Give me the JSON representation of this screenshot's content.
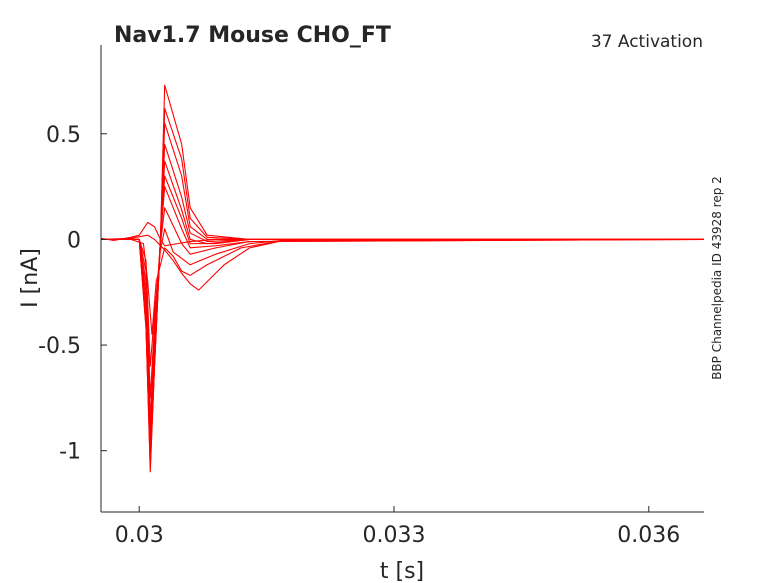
{
  "chart_data": {
    "type": "line",
    "title": "Nav1.7  Mouse  CHO_FT",
    "subtitle": "37  Activation",
    "side_label": "BBP Channelpedia ID 43928 rep 2",
    "xlabel": "t [s]",
    "ylabel": "I [nA]",
    "xlim": [
      0.02955,
      0.03665
    ],
    "ylim": [
      -1.29,
      0.92
    ],
    "x_ticks": [
      0.03,
      0.033,
      0.036
    ],
    "x_tick_labels": [
      "0.03",
      "0.033",
      "0.036"
    ],
    "y_ticks": [
      -1,
      -0.5,
      0,
      0.5
    ],
    "y_tick_labels": [
      "-1",
      "-0.5",
      "0",
      "0.5"
    ],
    "grid": false,
    "line_color": "#ff0000",
    "series": [
      {
        "values": [
          [
            0.02955,
            0.005
          ],
          [
            0.0297,
            -0.005
          ],
          [
            0.0299,
            0.01
          ],
          [
            0.03,
            0.02
          ],
          [
            0.0301,
            0.08
          ],
          [
            0.03018,
            0.06
          ],
          [
            0.03025,
            0.0
          ],
          [
            0.0303,
            -0.03
          ],
          [
            0.03045,
            -0.02
          ],
          [
            0.0306,
            -0.01
          ],
          [
            0.0309,
            0.0
          ],
          [
            0.033,
            0.0
          ],
          [
            0.036,
            0.0
          ],
          [
            0.03665,
            0.0
          ]
        ]
      },
      {
        "values": [
          [
            0.02955,
            0.0
          ],
          [
            0.0299,
            0.005
          ],
          [
            0.0301,
            0.02
          ],
          [
            0.03018,
            0.0
          ],
          [
            0.0303,
            -0.05
          ],
          [
            0.0304,
            -0.1
          ],
          [
            0.0305,
            -0.16
          ],
          [
            0.0306,
            -0.21
          ],
          [
            0.0307,
            -0.24
          ],
          [
            0.0308,
            -0.2
          ],
          [
            0.031,
            -0.12
          ],
          [
            0.0313,
            -0.04
          ],
          [
            0.0317,
            -0.005
          ],
          [
            0.0325,
            0.0
          ],
          [
            0.03665,
            0.0
          ]
        ]
      },
      {
        "values": [
          [
            0.02955,
            0.0
          ],
          [
            0.0299,
            0.0
          ],
          [
            0.03005,
            -0.02
          ],
          [
            0.0301,
            -0.2
          ],
          [
            0.03015,
            -0.45
          ],
          [
            0.0302,
            -0.2
          ],
          [
            0.0303,
            -0.04
          ],
          [
            0.0304,
            -0.08
          ],
          [
            0.0305,
            -0.15
          ],
          [
            0.0306,
            -0.17
          ],
          [
            0.0308,
            -0.12
          ],
          [
            0.0312,
            -0.04
          ],
          [
            0.0317,
            -0.005
          ],
          [
            0.03665,
            0.0
          ]
        ]
      },
      {
        "values": [
          [
            0.02955,
            0.0
          ],
          [
            0.03,
            0.0
          ],
          [
            0.03008,
            -0.1
          ],
          [
            0.03013,
            -0.6
          ],
          [
            0.03018,
            -0.35
          ],
          [
            0.03025,
            -0.05
          ],
          [
            0.0303,
            0.05
          ],
          [
            0.0304,
            -0.06
          ],
          [
            0.0306,
            -0.12
          ],
          [
            0.0309,
            -0.07
          ],
          [
            0.0313,
            -0.02
          ],
          [
            0.0318,
            0.0
          ],
          [
            0.03665,
            0.0
          ]
        ]
      },
      {
        "values": [
          [
            0.02955,
            0.0
          ],
          [
            0.03,
            0.0
          ],
          [
            0.03008,
            -0.15
          ],
          [
            0.03013,
            -0.75
          ],
          [
            0.03018,
            -0.4
          ],
          [
            0.03025,
            -0.02
          ],
          [
            0.0303,
            0.15
          ],
          [
            0.0305,
            -0.02
          ],
          [
            0.0306,
            -0.07
          ],
          [
            0.0309,
            -0.04
          ],
          [
            0.0313,
            -0.01
          ],
          [
            0.03665,
            0.0
          ]
        ]
      },
      {
        "values": [
          [
            0.02955,
            0.0
          ],
          [
            0.03,
            0.0
          ],
          [
            0.03008,
            -0.2
          ],
          [
            0.03013,
            -0.85
          ],
          [
            0.03018,
            -0.45
          ],
          [
            0.03025,
            0.0
          ],
          [
            0.0303,
            0.25
          ],
          [
            0.0305,
            0.05
          ],
          [
            0.0306,
            -0.04
          ],
          [
            0.0309,
            -0.03
          ],
          [
            0.0313,
            -0.01
          ],
          [
            0.03665,
            0.0
          ]
        ]
      },
      {
        "values": [
          [
            0.02955,
            0.0
          ],
          [
            0.03,
            0.0
          ],
          [
            0.03008,
            -0.25
          ],
          [
            0.03013,
            -0.92
          ],
          [
            0.03018,
            -0.5
          ],
          [
            0.03025,
            0.0
          ],
          [
            0.0303,
            0.3
          ],
          [
            0.0305,
            0.1
          ],
          [
            0.0306,
            -0.02
          ],
          [
            0.0309,
            -0.02
          ],
          [
            0.0313,
            0.0
          ],
          [
            0.03665,
            0.0
          ]
        ]
      },
      {
        "values": [
          [
            0.02955,
            0.0
          ],
          [
            0.03,
            0.0
          ],
          [
            0.03008,
            -0.3
          ],
          [
            0.03013,
            -0.98
          ],
          [
            0.03018,
            -0.55
          ],
          [
            0.03025,
            0.0
          ],
          [
            0.0303,
            0.37
          ],
          [
            0.0305,
            0.14
          ],
          [
            0.0306,
            0.0
          ],
          [
            0.0308,
            -0.02
          ],
          [
            0.0313,
            0.0
          ],
          [
            0.03665,
            0.0
          ]
        ]
      },
      {
        "values": [
          [
            0.02955,
            0.0
          ],
          [
            0.03,
            0.0
          ],
          [
            0.03008,
            -0.35
          ],
          [
            0.03013,
            -1.04
          ],
          [
            0.03018,
            -0.58
          ],
          [
            0.03025,
            0.0
          ],
          [
            0.0303,
            0.45
          ],
          [
            0.0305,
            0.2
          ],
          [
            0.0306,
            0.03
          ],
          [
            0.0308,
            -0.01
          ],
          [
            0.0313,
            0.0
          ],
          [
            0.03665,
            0.0
          ]
        ]
      },
      {
        "values": [
          [
            0.02955,
            0.0
          ],
          [
            0.03,
            0.0
          ],
          [
            0.03008,
            -0.4
          ],
          [
            0.03013,
            -1.1
          ],
          [
            0.03018,
            -0.6
          ],
          [
            0.03025,
            0.0
          ],
          [
            0.0303,
            0.55
          ],
          [
            0.0305,
            0.3
          ],
          [
            0.0306,
            0.06
          ],
          [
            0.0308,
            0.0
          ],
          [
            0.0313,
            0.0
          ],
          [
            0.03665,
            0.0
          ]
        ]
      },
      {
        "values": [
          [
            0.02955,
            0.0
          ],
          [
            0.03,
            0.0
          ],
          [
            0.03008,
            -0.42
          ],
          [
            0.03013,
            -1.08
          ],
          [
            0.03018,
            -0.6
          ],
          [
            0.03025,
            0.0
          ],
          [
            0.0303,
            0.62
          ],
          [
            0.0305,
            0.38
          ],
          [
            0.0306,
            0.1
          ],
          [
            0.0308,
            0.01
          ],
          [
            0.0313,
            0.0
          ],
          [
            0.03665,
            0.0
          ]
        ]
      },
      {
        "values": [
          [
            0.02955,
            0.0
          ],
          [
            0.03,
            0.0
          ],
          [
            0.03008,
            -0.42
          ],
          [
            0.03013,
            -1.05
          ],
          [
            0.03018,
            -0.6
          ],
          [
            0.03025,
            0.0
          ],
          [
            0.0303,
            0.73
          ],
          [
            0.0305,
            0.45
          ],
          [
            0.0306,
            0.15
          ],
          [
            0.0308,
            0.02
          ],
          [
            0.0313,
            0.0
          ],
          [
            0.03665,
            0.0
          ]
        ]
      }
    ]
  }
}
